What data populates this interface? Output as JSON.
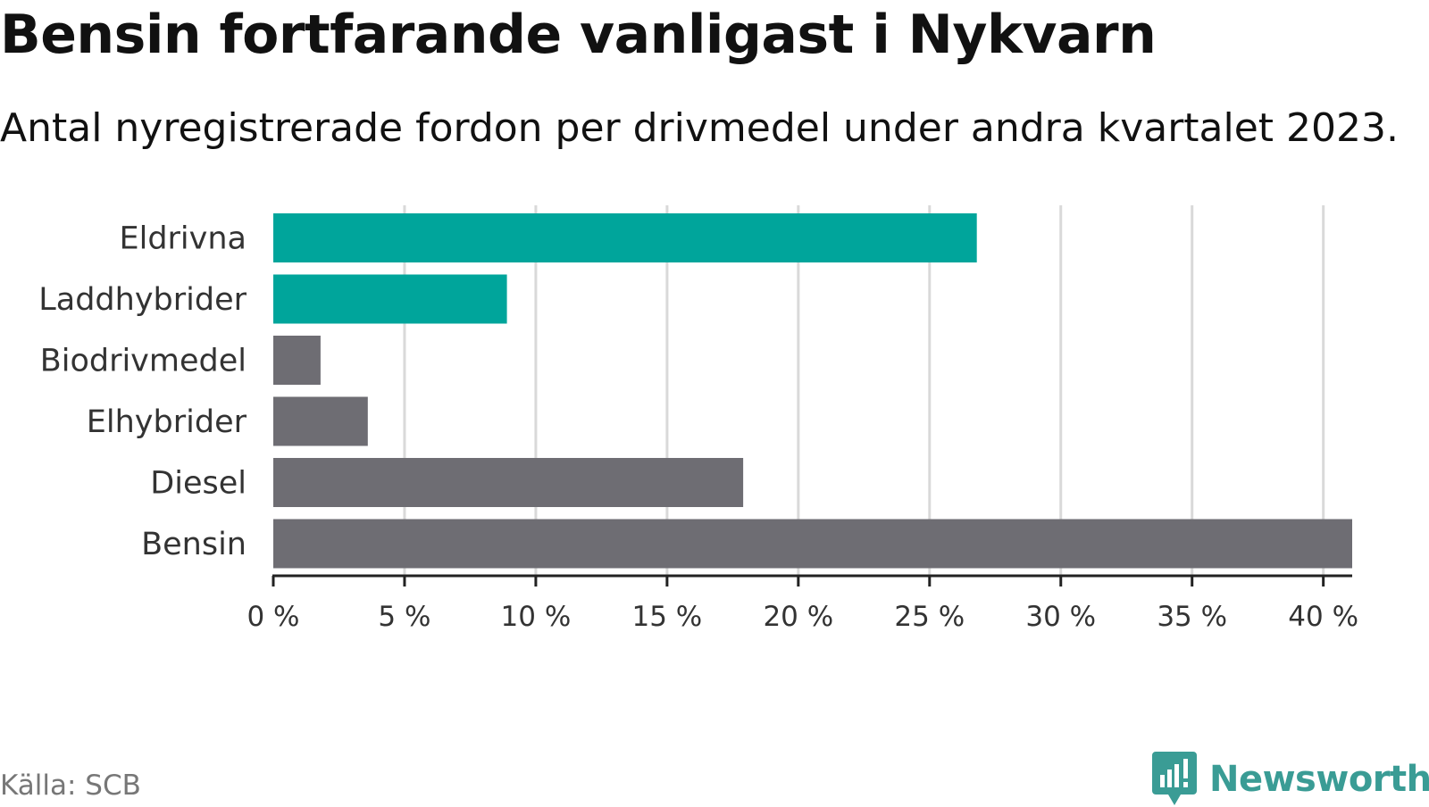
{
  "header": {
    "title": "Bensin fortfarande vanligast i Nykvarn",
    "subtitle": "Antal nyregistrerade fordon per drivmedel under andra kvartalet 2023."
  },
  "footer": {
    "source": "Källa: SCB",
    "brand": "Newsworthy",
    "brand_icon": "newsworthy-logo-icon"
  },
  "colors": {
    "highlight": "#00a59b",
    "default": "#6e6d73",
    "grid": "#d9d9d9",
    "axis": "#222222",
    "brand": "#3a9c95"
  },
  "chart_data": {
    "type": "bar",
    "orientation": "horizontal",
    "categories": [
      "Eldrivna",
      "Laddhybrider",
      "Biodrivmedel",
      "Elhybrider",
      "Diesel",
      "Bensin"
    ],
    "values": [
      26.8,
      8.9,
      1.8,
      3.6,
      17.9,
      41.1
    ],
    "highlighted": [
      "Eldrivna",
      "Laddhybrider"
    ],
    "xlim": [
      0,
      41.1
    ],
    "xticks": [
      0,
      5,
      10,
      15,
      20,
      25,
      30,
      35,
      40
    ],
    "xtick_labels": [
      "0 %",
      "5 %",
      "10 %",
      "15 %",
      "20 %",
      "25 %",
      "30 %",
      "35 %",
      "40 %"
    ],
    "xlabel": "",
    "ylabel": "",
    "grid": true,
    "legend": "none"
  }
}
